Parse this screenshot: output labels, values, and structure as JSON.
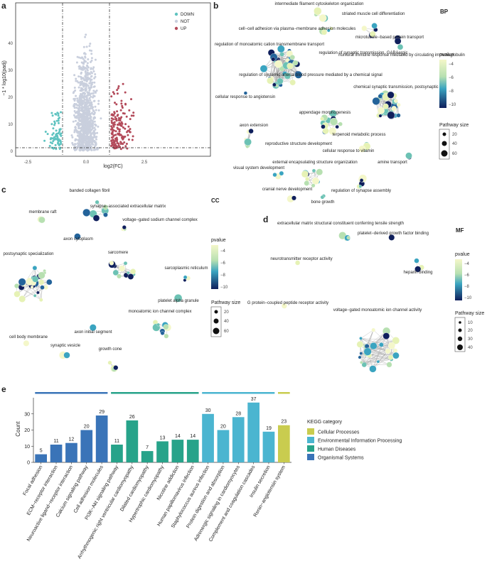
{
  "volcano": {
    "letter": "a",
    "xlabel": "log2(FC)",
    "ylabel": "−1 * log10(padj)",
    "xticks": [
      "-2.5",
      "0.0",
      "2.5"
    ],
    "yticks": [
      "0",
      "10",
      "20",
      "30",
      "40"
    ],
    "legend": [
      {
        "label": "DOWN",
        "color": "#5fc3c0"
      },
      {
        "label": "NOT",
        "color": "#c9cfdd"
      },
      {
        "label": "UP",
        "color": "#b34a5a"
      }
    ]
  },
  "bp": {
    "letter": "b",
    "tag": "BP",
    "legend_title": "pvalue",
    "legend_ticks": [
      "−4",
      "−6",
      "−8",
      "−10"
    ],
    "size_title": "Pathway size",
    "size_ticks": [
      "20",
      "40",
      "60"
    ],
    "labels": [
      "intermediate filament cytoskeleton organization",
      "striated muscle cell differentiation",
      "cell−cell adhesion via plasma−membrane adhesion molecules",
      "microtubule−based protein transport",
      "regulation of monoatomic cation transmembrane transport",
      "regulation of synaptic transmission, GABAergic",
      "humoral immune response mediated by circulating immunoglobulin",
      "regulation of systemic arterial blood pressure mediated by a chemical signal",
      "cellular response to angiotensin",
      "chemical synaptic transmission, postsynaptic",
      "axon extension",
      "appendage morphogenesis",
      "terpenoid metabolic process",
      "reproductive structure development",
      "cellular response to vitamin",
      "visual system development",
      "external encapsulating structure organization",
      "amine transport",
      "cranial nerve development",
      "regulation of synapse assembly",
      "bone growth"
    ]
  },
  "cc": {
    "letter": "c",
    "tag": "CC",
    "legend_title": "pvalue",
    "legend_ticks": [
      "−4",
      "−6",
      "−8",
      "−10"
    ],
    "size_title": "Pathway size",
    "size_ticks": [
      "20",
      "40",
      "60"
    ],
    "labels": [
      "banded collagen fibril",
      "synapse−associated extracellular matrix",
      "membrane raft",
      "voltage−gated sodium channel complex",
      "axon cytoplasm",
      "postsynaptic specialization",
      "sarcomere",
      "sarcoplasmic reticulum",
      "platelet alpha granule",
      "axon initial segment",
      "monoatomic ion channel complex",
      "cell body membrane",
      "synaptic vesicle",
      "growth cone"
    ]
  },
  "mf": {
    "letter": "d",
    "tag": "MF",
    "legend_title": "pvalue",
    "legend_ticks": [
      "−4",
      "−6",
      "−8",
      "−10"
    ],
    "size_title": "Pathway size",
    "size_ticks": [
      "10",
      "20",
      "30",
      "40"
    ],
    "labels": [
      "extracellular matrix structural constituent conferring tensile strength",
      "platelet−derived growth factor binding",
      "neurotransmitter receptor activity",
      "heparin binding",
      "G protein−coupled peptide receptor activity",
      "voltage−gated monoatomic ion channel activity"
    ]
  },
  "chart_data": {
    "type": "bar",
    "letter": "e",
    "ylabel": "Count",
    "ylim": [
      0,
      40
    ],
    "yticks": [
      "0",
      "10",
      "20",
      "30"
    ],
    "legend_title": "KEGG category",
    "legend_placement": "right",
    "categories_legend": [
      {
        "name": "Cellular Processes",
        "color": "#c9cc4f"
      },
      {
        "name": "Environmental Information Processing",
        "color": "#4bb5d0"
      },
      {
        "name": "Human Diseases",
        "color": "#27a38a"
      },
      {
        "name": "Organismal Systems",
        "color": "#3a74b8"
      }
    ],
    "categories": [
      "Focal adhesion",
      "ECM−receptor interaction",
      "Neuroactive ligand−receptor interaction",
      "Calcium signaling pathway",
      "Cell adhesion molecules",
      "PI3K−Akt signaling pathway",
      "Arrhythmogenic right ventricular cardiomyopathy",
      "Dilated cardiomyopathy",
      "Hypertrophic cardiomyopathy",
      "Nicotine addiction",
      "Human papillomavirus infection",
      "Staphylococcus aureus infection",
      "Protein digestion and absorption",
      "Adrenergic signaling in cardiomyocytes",
      "Complement and coagulation cascades",
      "Insulin secretion",
      "Renin−angiotensin system"
    ],
    "values": [
      5,
      11,
      12,
      20,
      29,
      11,
      26,
      7,
      13,
      14,
      14,
      30,
      20,
      28,
      37,
      19,
      23
    ],
    "groups": [
      "Organismal Systems",
      "Organismal Systems",
      "Organismal Systems",
      "Organismal Systems",
      "Organismal Systems",
      "Human Diseases",
      "Human Diseases",
      "Human Diseases",
      "Human Diseases",
      "Human Diseases",
      "Human Diseases",
      "Environmental Information Processing",
      "Environmental Information Processing",
      "Environmental Information Processing",
      "Environmental Information Processing",
      "Environmental Information Processing",
      "Cellular Processes"
    ]
  }
}
